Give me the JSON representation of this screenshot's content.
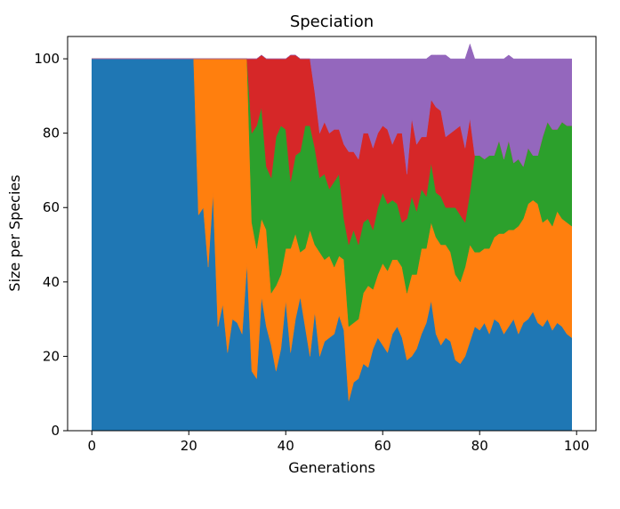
{
  "chart_data": {
    "type": "area",
    "stacked": true,
    "title": "Speciation",
    "xlabel": "Generations",
    "ylabel": "Size per Species",
    "xlim": [
      -5,
      104
    ],
    "ylim": [
      0,
      106
    ],
    "xticks": [
      0,
      20,
      40,
      60,
      80,
      100
    ],
    "yticks": [
      0,
      20,
      40,
      60,
      80,
      100
    ],
    "grid": false,
    "legend": "none",
    "x_start": 0,
    "series": [
      {
        "color": "#1f77b4",
        "values": [
          100,
          100,
          100,
          100,
          100,
          100,
          100,
          100,
          100,
          100,
          100,
          100,
          100,
          100,
          100,
          100,
          100,
          100,
          100,
          100,
          100,
          100,
          58,
          60,
          44,
          64,
          28,
          34,
          21,
          30,
          29,
          26,
          45,
          16,
          14,
          36,
          28,
          23,
          16,
          22,
          35,
          21,
          30,
          36,
          28,
          20,
          32,
          20,
          24,
          25,
          26,
          31,
          27,
          8,
          13,
          14,
          18,
          17,
          22,
          25,
          23,
          21,
          26,
          28,
          25,
          19,
          20,
          22,
          26,
          29,
          35,
          26,
          23,
          25,
          24,
          19,
          18,
          20,
          24,
          28,
          27,
          29,
          26,
          30,
          29,
          26,
          28,
          30,
          26,
          29,
          30,
          32,
          29,
          28,
          30,
          27,
          29,
          28,
          26,
          25
        ]
      },
      {
        "color": "#ff7f0e",
        "values": [
          0,
          0,
          0,
          0,
          0,
          0,
          0,
          0,
          0,
          0,
          0,
          0,
          0,
          0,
          0,
          0,
          0,
          0,
          0,
          0,
          0,
          0,
          42,
          40,
          56,
          36,
          72,
          66,
          79,
          70,
          71,
          74,
          55,
          40,
          35,
          21,
          26,
          14,
          23,
          20,
          14,
          28,
          23,
          12,
          21,
          34,
          18,
          28,
          22,
          22,
          18,
          16,
          19,
          20,
          16,
          16,
          19,
          22,
          16,
          17,
          22,
          22,
          20,
          18,
          19,
          18,
          22,
          20,
          23,
          20,
          21,
          26,
          27,
          25,
          24,
          23,
          22,
          24,
          26,
          20,
          21,
          20,
          23,
          22,
          24,
          27,
          26,
          24,
          29,
          28,
          31,
          30,
          32,
          28,
          27,
          28,
          30,
          29,
          30,
          30
        ]
      },
      {
        "color": "#2ca02c",
        "values": [
          0,
          0,
          0,
          0,
          0,
          0,
          0,
          0,
          0,
          0,
          0,
          0,
          0,
          0,
          0,
          0,
          0,
          0,
          0,
          0,
          0,
          0,
          0,
          0,
          0,
          0,
          0,
          0,
          0,
          0,
          0,
          0,
          0,
          24,
          33,
          30,
          17,
          31,
          40,
          40,
          32,
          18,
          21,
          27,
          33,
          28,
          26,
          20,
          23,
          18,
          23,
          22,
          11,
          22,
          25,
          20,
          19,
          18,
          16,
          18,
          19,
          18,
          16,
          15,
          12,
          20,
          21,
          17,
          16,
          14,
          16,
          12,
          13,
          10,
          12,
          18,
          18,
          12,
          14,
          26,
          26,
          24,
          25,
          22,
          25,
          20,
          24,
          18,
          18,
          14,
          15,
          12,
          13,
          23,
          26,
          26,
          22,
          26,
          26,
          27
        ]
      },
      {
        "color": "#d62728",
        "values": [
          0,
          0,
          0,
          0,
          0,
          0,
          0,
          0,
          0,
          0,
          0,
          0,
          0,
          0,
          0,
          0,
          0,
          0,
          0,
          0,
          0,
          0,
          0,
          0,
          0,
          0,
          0,
          0,
          0,
          0,
          0,
          0,
          0,
          20,
          18,
          14,
          29,
          32,
          21,
          18,
          19,
          34,
          27,
          25,
          18,
          18,
          15,
          12,
          14,
          15,
          14,
          12,
          20,
          25,
          21,
          23,
          24,
          23,
          22,
          20,
          18,
          20,
          15,
          19,
          24,
          12,
          21,
          18,
          14,
          16,
          17,
          23,
          23,
          19,
          20,
          21,
          24,
          20,
          20,
          0,
          0,
          0,
          0,
          0,
          0,
          0,
          0,
          0,
          0,
          0,
          0,
          0,
          0,
          0,
          0,
          0,
          0,
          0,
          0,
          0
        ]
      },
      {
        "color": "#9467bd",
        "values": [
          0,
          0,
          0,
          0,
          0,
          0,
          0,
          0,
          0,
          0,
          0,
          0,
          0,
          0,
          0,
          0,
          0,
          0,
          0,
          0,
          0,
          0,
          0,
          0,
          0,
          0,
          0,
          0,
          0,
          0,
          0,
          0,
          0,
          0,
          0,
          0,
          0,
          0,
          0,
          0,
          0,
          0,
          0,
          0,
          0,
          0,
          9,
          20,
          17,
          20,
          19,
          19,
          23,
          25,
          25,
          27,
          20,
          20,
          24,
          20,
          18,
          19,
          23,
          20,
          20,
          31,
          16,
          23,
          21,
          21,
          12,
          14,
          15,
          22,
          20,
          19,
          18,
          24,
          20,
          26,
          26,
          27,
          26,
          26,
          22,
          27,
          23,
          28,
          27,
          29,
          24,
          26,
          26,
          21,
          17,
          19,
          19,
          17,
          18,
          18
        ]
      }
    ]
  }
}
